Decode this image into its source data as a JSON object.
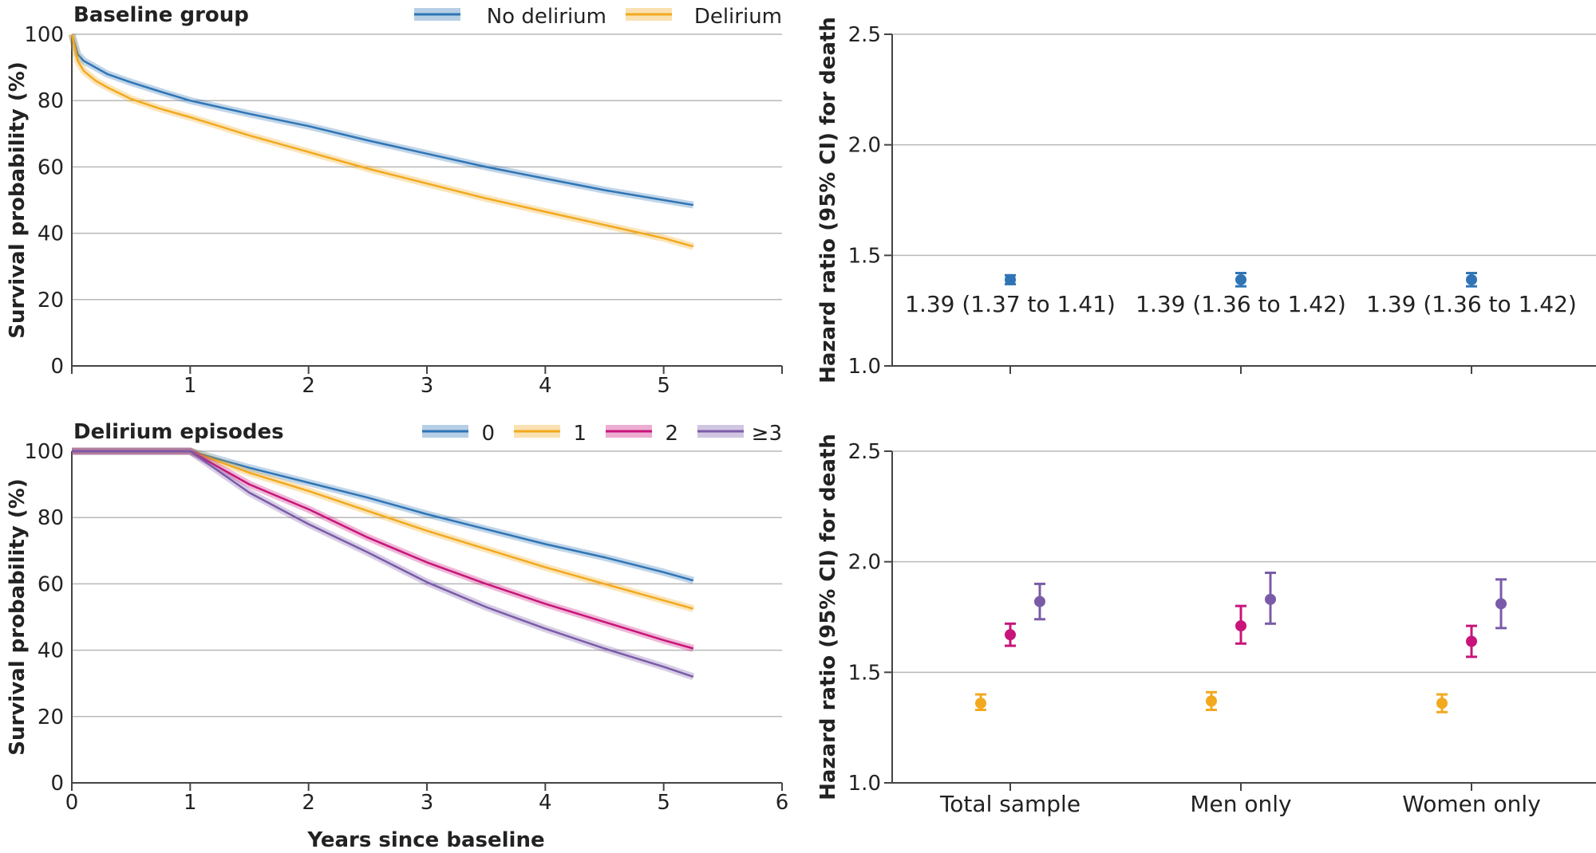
{
  "colors": {
    "blue": "#2f75b5",
    "orange": "#f2a91f",
    "magenta": "#c8147a",
    "purple": "#7a5ba8",
    "grid": "#b8b8b8",
    "axis": "#444444"
  },
  "xlabel": "Years since baseline",
  "chart_data": [
    {
      "type": "line",
      "title": "Baseline group",
      "xlabel": "",
      "ylabel": "Survival probability (%)",
      "xlim": [
        0,
        6
      ],
      "ylim": [
        0,
        100
      ],
      "xticks": [
        1,
        2,
        3,
        4,
        5
      ],
      "yticks": [
        0,
        20,
        40,
        60,
        80,
        100
      ],
      "grid": true,
      "legend": "top-right",
      "series": [
        {
          "name": "No delirium",
          "color": "blue",
          "x": [
            0,
            0.05,
            0.1,
            0.2,
            0.3,
            0.5,
            0.75,
            1,
            1.5,
            2,
            2.5,
            3,
            3.5,
            4,
            4.5,
            5,
            5.25
          ],
          "y": [
            100,
            94,
            92,
            90,
            88,
            85.5,
            82.7,
            80,
            76,
            72.3,
            68,
            64,
            60,
            56.5,
            53,
            50,
            48.5
          ]
        },
        {
          "name": "Delirium",
          "color": "orange",
          "x": [
            0,
            0.05,
            0.1,
            0.2,
            0.3,
            0.5,
            0.75,
            1,
            1.5,
            2,
            2.5,
            3,
            3.5,
            4,
            4.5,
            5,
            5.25
          ],
          "y": [
            100,
            92,
            89,
            86,
            84,
            80.5,
            77.5,
            75,
            69.5,
            64.5,
            59.5,
            55,
            50.5,
            46.5,
            42.5,
            38.5,
            36
          ]
        }
      ]
    },
    {
      "type": "scatter",
      "title": "",
      "ylabel": "Hazard ratio (95% CI) for death",
      "ylim": [
        1.0,
        2.5
      ],
      "yticks": [
        "1.0",
        "1.5",
        "2.0",
        "2.5"
      ],
      "grid": true,
      "categories": [
        "Total sample",
        "Men only",
        "Women only"
      ],
      "series": [
        {
          "color": "blue",
          "values": [
            1.39,
            1.39,
            1.39
          ],
          "lower": [
            1.37,
            1.36,
            1.36
          ],
          "upper": [
            1.41,
            1.42,
            1.42
          ],
          "labels": [
            "1.39 (1.37 to 1.41)",
            "1.39 (1.36 to 1.42)",
            "1.39 (1.36 to 1.42)"
          ]
        }
      ]
    },
    {
      "type": "line",
      "title": "Delirium episodes",
      "xlabel": "Years since baseline",
      "ylabel": "Survival probability (%)",
      "xlim": [
        0,
        6
      ],
      "ylim": [
        0,
        100
      ],
      "xticks": [
        0,
        1,
        2,
        3,
        4,
        5,
        6
      ],
      "yticks": [
        0,
        20,
        40,
        60,
        80,
        100
      ],
      "grid": true,
      "legend": "top-right",
      "series": [
        {
          "name": "0",
          "color": "blue",
          "x": [
            0,
            1,
            1.5,
            2,
            2.5,
            3,
            3.5,
            4,
            4.5,
            5,
            5.25
          ],
          "y": [
            100,
            100,
            95,
            90.5,
            86,
            81,
            76.5,
            72,
            68,
            63.5,
            61
          ]
        },
        {
          "name": "1",
          "color": "orange",
          "x": [
            0,
            1,
            1.5,
            2,
            2.5,
            3,
            3.5,
            4,
            4.5,
            5,
            5.25
          ],
          "y": [
            100,
            100,
            93.5,
            88,
            82,
            76,
            70.5,
            65,
            60,
            55,
            52.5
          ]
        },
        {
          "name": "2",
          "color": "magenta",
          "x": [
            0,
            1,
            1.5,
            2,
            2.5,
            3,
            3.5,
            4,
            4.5,
            5,
            5.25
          ],
          "y": [
            100,
            100,
            90,
            82.5,
            74,
            66.5,
            60,
            54,
            48.5,
            43,
            40.5
          ]
        },
        {
          "name": "≥3",
          "color": "purple",
          "x": [
            0,
            1,
            1.5,
            2,
            2.5,
            3,
            3.5,
            4,
            4.5,
            5,
            5.25
          ],
          "y": [
            100,
            100,
            87.5,
            78,
            69.5,
            60.5,
            53,
            46.5,
            40.5,
            35,
            32
          ]
        }
      ]
    },
    {
      "type": "scatter",
      "title": "",
      "ylabel": "Hazard ratio (95% CI) for death",
      "ylim": [
        1.0,
        2.5
      ],
      "yticks": [
        "1.0",
        "1.5",
        "2.0",
        "2.5"
      ],
      "grid": true,
      "categories": [
        "Total sample",
        "Men only",
        "Women only"
      ],
      "series": [
        {
          "name": "1",
          "color": "orange",
          "values": [
            1.36,
            1.37,
            1.36
          ],
          "lower": [
            1.33,
            1.33,
            1.32
          ],
          "upper": [
            1.4,
            1.41,
            1.4
          ]
        },
        {
          "name": "2",
          "color": "magenta",
          "values": [
            1.67,
            1.71,
            1.64
          ],
          "lower": [
            1.62,
            1.63,
            1.57
          ],
          "upper": [
            1.72,
            1.8,
            1.71
          ]
        },
        {
          "name": "≥3",
          "color": "purple",
          "values": [
            1.82,
            1.83,
            1.81
          ],
          "lower": [
            1.74,
            1.72,
            1.7
          ],
          "upper": [
            1.9,
            1.95,
            1.92
          ]
        }
      ]
    }
  ]
}
